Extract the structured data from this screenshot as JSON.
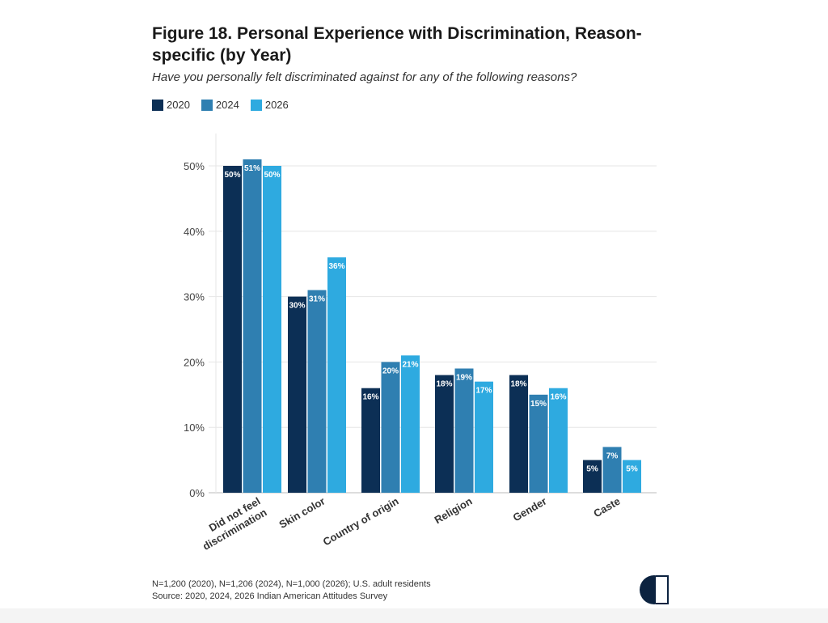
{
  "title": "Figure 18. Personal Experience with Discrimination, Reason-specific (by Year)",
  "subtitle": "Have you personally felt discriminated against for any of the following reasons?",
  "footnote": "N=1,200 (2020), N=1,206 (2024), N=1,000 (2026); U.S. adult residents",
  "source": "Source: 2020, 2024, 2026 Indian American Attitudes Survey",
  "chart_data": {
    "type": "bar",
    "categories": [
      "Did not feel discrimination",
      "Skin color",
      "Country of origin",
      "Religion",
      "Gender",
      "Caste"
    ],
    "series": [
      {
        "name": "2020",
        "color": "#0c2f55",
        "values": [
          50,
          30,
          16,
          18,
          18,
          5
        ]
      },
      {
        "name": "2024",
        "color": "#2f7fb1",
        "values": [
          51,
          31,
          20,
          19,
          15,
          7
        ]
      },
      {
        "name": "2026",
        "color": "#2eaae0",
        "values": [
          50,
          36,
          21,
          17,
          16,
          5
        ]
      }
    ],
    "yticks": [
      "0%",
      "10%",
      "20%",
      "30%",
      "40%",
      "50%"
    ],
    "ylim": [
      0,
      55
    ],
    "grid": true,
    "legend": "top-left",
    "data_label_suffix": "%"
  }
}
